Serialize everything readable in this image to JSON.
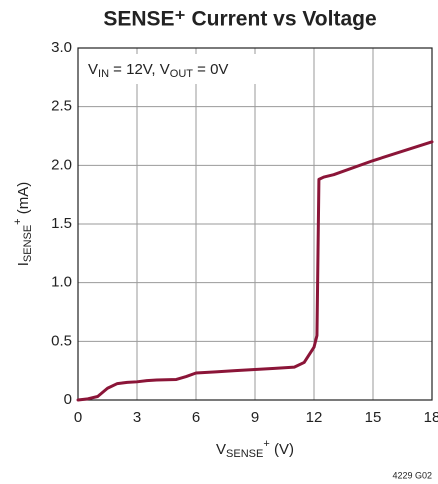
{
  "chart_data": {
    "type": "line",
    "title": "SENSE⁺ Current vs Voltage",
    "x_label": [
      "V",
      "SENSE",
      "+",
      " (V)"
    ],
    "y_label": [
      "I",
      "SENSE",
      "+",
      " (mA)"
    ],
    "annotation": [
      "V",
      "IN",
      " = 12V, V",
      "OUT",
      " = 0V"
    ],
    "footnote": "4229 G02",
    "x": [
      0,
      0.5,
      1,
      1.5,
      2,
      2.5,
      3,
      3.5,
      4,
      5,
      5.5,
      6,
      7,
      8,
      9,
      10,
      11,
      11.5,
      12,
      12.15,
      12.25,
      12.5,
      13,
      15,
      18
    ],
    "series": [
      {
        "name": "ISENSE+",
        "color": "#8b1538",
        "values": [
          0,
          0.01,
          0.03,
          0.1,
          0.14,
          0.15,
          0.155,
          0.165,
          0.17,
          0.175,
          0.2,
          0.23,
          0.24,
          0.25,
          0.26,
          0.27,
          0.28,
          0.32,
          0.45,
          0.55,
          1.88,
          1.9,
          1.92,
          2.04,
          2.2
        ]
      }
    ],
    "xlim": [
      0,
      18
    ],
    "xticks": [
      0,
      3,
      6,
      9,
      12,
      15,
      18
    ],
    "ylim": [
      0,
      3
    ],
    "yticks": [
      0,
      0.5,
      {
        "value": 1,
        "label": "1.0"
      },
      1.5,
      {
        "value": 2,
        "label": "2.0"
      },
      2.5,
      {
        "value": 3,
        "label": "3.0"
      }
    ],
    "grid": true
  }
}
